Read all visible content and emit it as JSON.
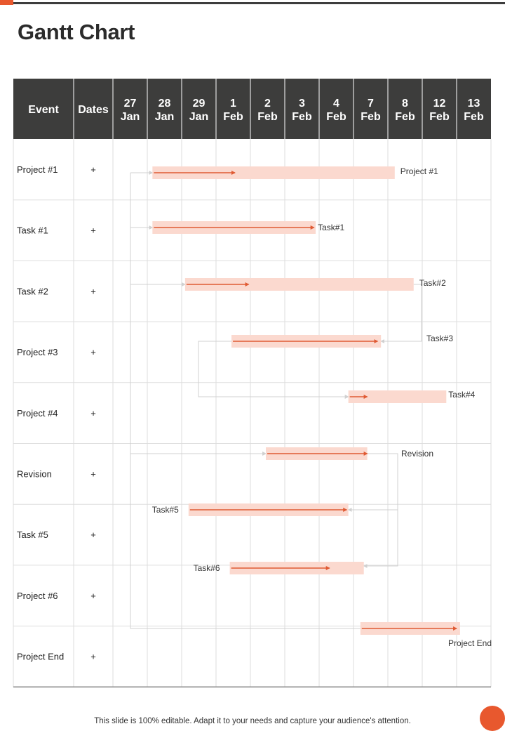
{
  "page": {
    "title": "Gantt Chart",
    "footer": "This slide is 100% editable. Adapt it to your needs and capture your audience's attention."
  },
  "colors": {
    "header_bg": "#3d3d3c",
    "bar_fill": "#fbd9cf",
    "progress": "#e05a33",
    "grid": "#dddddd",
    "connector": "#d0d0d0",
    "accent": "#e8582e"
  },
  "chart_data": {
    "type": "gantt",
    "columns": {
      "event": "Event",
      "dates": "Dates",
      "days": [
        [
          "27",
          "Jan"
        ],
        [
          "28",
          "Jan"
        ],
        [
          "29",
          "Jan"
        ],
        [
          "1",
          "Feb"
        ],
        [
          "2",
          "Feb"
        ],
        [
          "3",
          "Feb"
        ],
        [
          "4",
          "Feb"
        ],
        [
          "7",
          "Feb"
        ],
        [
          "8",
          "Feb"
        ],
        [
          "12",
          "Feb"
        ],
        [
          "13",
          "Feb"
        ]
      ]
    },
    "rows": [
      {
        "event": "Project #1",
        "dates": "+"
      },
      {
        "event": "Task #1",
        "dates": "+"
      },
      {
        "event": "Task #2",
        "dates": "+"
      },
      {
        "event": "Project #3",
        "dates": "+"
      },
      {
        "event": "Project #4",
        "dates": "+"
      },
      {
        "event": "Revision",
        "dates": "+"
      },
      {
        "event": "Task #5",
        "dates": "+"
      },
      {
        "event": "Project #6",
        "dates": "+"
      },
      {
        "event": "Project End",
        "dates": "+"
      }
    ],
    "bars": [
      {
        "label": "Project #1",
        "start": 1.15,
        "end": 8.2,
        "progress_end": 3.55,
        "label_side": "right"
      },
      {
        "label": "Task#1",
        "start": 1.15,
        "end": 5.9,
        "progress_end": 5.85,
        "label_side": "right"
      },
      {
        "label": "Task#2",
        "start": 2.1,
        "end": 8.75,
        "progress_end": 3.95,
        "label_side": "right"
      },
      {
        "label": "Task#3",
        "start": 3.45,
        "end": 7.8,
        "progress_end": 7.7,
        "label_side": "right"
      },
      {
        "label": "Task#4",
        "start": 6.85,
        "end": 9.7,
        "progress_end": 7.4,
        "label_side": "right"
      },
      {
        "label": "Revision",
        "start": 4.45,
        "end": 7.4,
        "progress_end": 7.4,
        "label_side": "right"
      },
      {
        "label": "Task#5",
        "start": 2.2,
        "end": 6.85,
        "progress_end": 6.8,
        "label_side": "left"
      },
      {
        "label": "Task#6",
        "start": 3.4,
        "end": 7.3,
        "progress_end": 6.3,
        "label_side": "left"
      },
      {
        "label": "Project End",
        "start": 7.2,
        "end": 10.1,
        "progress_end": 10.0,
        "label_side": "below"
      }
    ]
  }
}
